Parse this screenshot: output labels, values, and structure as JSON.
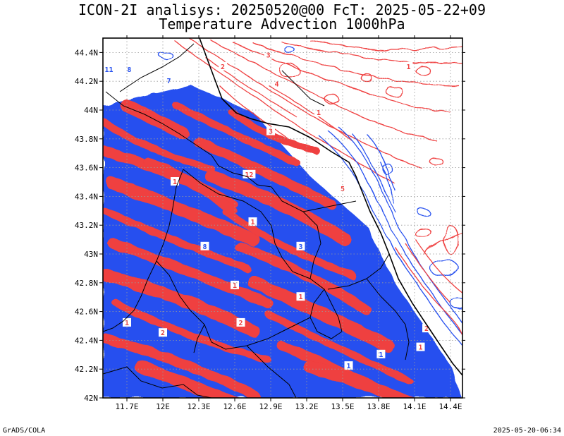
{
  "title": {
    "line1": "ICON-2I analisys: 20250520@00 FcT: 2025-05-22+09",
    "line2": "Temperature Advection 1000hPa"
  },
  "axes": {
    "lon_range": [
      11.5,
      14.5
    ],
    "lat_range": [
      42.0,
      44.5
    ],
    "x_ticks": [
      {
        "value": 11.7,
        "label": "11.7E"
      },
      {
        "value": 12.0,
        "label": "12E"
      },
      {
        "value": 12.3,
        "label": "12.3E"
      },
      {
        "value": 12.6,
        "label": "12.6E"
      },
      {
        "value": 12.9,
        "label": "12.9E"
      },
      {
        "value": 13.2,
        "label": "13.2E"
      },
      {
        "value": 13.5,
        "label": "13.5E"
      },
      {
        "value": 13.8,
        "label": "13.8E"
      },
      {
        "value": 14.1,
        "label": "14.1E"
      },
      {
        "value": 14.4,
        "label": "14.4E"
      }
    ],
    "y_ticks": [
      {
        "value": 42.0,
        "label": "42N"
      },
      {
        "value": 42.2,
        "label": "42.2N"
      },
      {
        "value": 42.4,
        "label": "42.4N"
      },
      {
        "value": 42.6,
        "label": "42.6N"
      },
      {
        "value": 42.8,
        "label": "42.8N"
      },
      {
        "value": 43.0,
        "label": "43N"
      },
      {
        "value": 43.2,
        "label": "43.2N"
      },
      {
        "value": 43.4,
        "label": "43.4N"
      },
      {
        "value": 43.6,
        "label": "43.6N"
      },
      {
        "value": 43.8,
        "label": "43.8N"
      },
      {
        "value": 44.0,
        "label": "44N"
      },
      {
        "value": 44.2,
        "label": "44.2N"
      },
      {
        "value": 44.4,
        "label": "44.4N"
      }
    ],
    "grid": true
  },
  "colors": {
    "warm_advection": "#ef3f3f",
    "cold_advection": "#2550ef",
    "border": "#000000",
    "grid": "#999999"
  },
  "contour_labels": [
    {
      "lon": 11.55,
      "lat": 44.28,
      "text": "11",
      "kind": "cold"
    },
    {
      "lon": 11.72,
      "lat": 44.28,
      "text": "8",
      "kind": "cold"
    },
    {
      "lon": 12.05,
      "lat": 44.2,
      "text": "7",
      "kind": "cold"
    },
    {
      "lon": 12.5,
      "lat": 44.3,
      "text": "2",
      "kind": "warm"
    },
    {
      "lon": 12.88,
      "lat": 44.38,
      "text": "3",
      "kind": "warm"
    },
    {
      "lon": 12.95,
      "lat": 44.18,
      "text": "4",
      "kind": "warm"
    },
    {
      "lon": 12.9,
      "lat": 43.85,
      "text": "3",
      "kind": "warm"
    },
    {
      "lon": 13.3,
      "lat": 43.98,
      "text": "1",
      "kind": "warm"
    },
    {
      "lon": 14.05,
      "lat": 44.3,
      "text": "1",
      "kind": "warm"
    },
    {
      "lon": 12.72,
      "lat": 43.55,
      "text": "12",
      "kind": "warm"
    },
    {
      "lon": 12.1,
      "lat": 43.5,
      "text": "1",
      "kind": "warm"
    },
    {
      "lon": 13.5,
      "lat": 43.45,
      "text": "5",
      "kind": "warm"
    },
    {
      "lon": 12.75,
      "lat": 43.22,
      "text": "1",
      "kind": "warm"
    },
    {
      "lon": 12.35,
      "lat": 43.05,
      "text": "8",
      "kind": "cold"
    },
    {
      "lon": 13.15,
      "lat": 43.05,
      "text": "3",
      "kind": "cold"
    },
    {
      "lon": 12.6,
      "lat": 42.78,
      "text": "1",
      "kind": "warm"
    },
    {
      "lon": 13.15,
      "lat": 42.7,
      "text": "1",
      "kind": "warm"
    },
    {
      "lon": 12.0,
      "lat": 42.45,
      "text": "2",
      "kind": "warm"
    },
    {
      "lon": 11.7,
      "lat": 42.52,
      "text": "1",
      "kind": "warm"
    },
    {
      "lon": 12.65,
      "lat": 42.52,
      "text": "2",
      "kind": "warm"
    },
    {
      "lon": 13.55,
      "lat": 42.22,
      "text": "1",
      "kind": "cold"
    },
    {
      "lon": 14.15,
      "lat": 42.35,
      "text": "1",
      "kind": "warm"
    },
    {
      "lon": 13.82,
      "lat": 42.3,
      "text": "1",
      "kind": "cold"
    },
    {
      "lon": 14.2,
      "lat": 42.48,
      "text": "2",
      "kind": "warm"
    }
  ],
  "footer": {
    "left": "GrADS/COLA",
    "right": "2025-05-20-06:34"
  }
}
